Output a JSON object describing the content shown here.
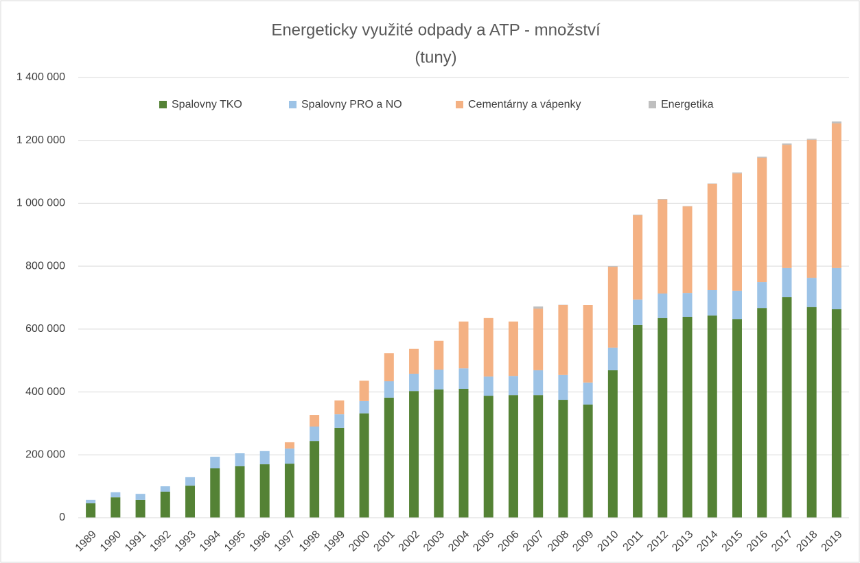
{
  "chart_data": {
    "type": "bar",
    "stacked": true,
    "title": "Energeticky využité odpady a ATP - množství",
    "subtitle": "(tuny)",
    "categories": [
      "1989",
      "1990",
      "1991",
      "1992",
      "1993",
      "1994",
      "1995",
      "1996",
      "1997",
      "1998",
      "1999",
      "2000",
      "2001",
      "2002",
      "2003",
      "2004",
      "2005",
      "2006",
      "2007",
      "2008",
      "2009",
      "2010",
      "2011",
      "2012",
      "2013",
      "2014",
      "2015",
      "2016",
      "2017",
      "2018",
      "2019"
    ],
    "series": [
      {
        "name": "Spalovny TKO",
        "color": "#548235",
        "values": [
          46000,
          65000,
          57000,
          83000,
          102000,
          157000,
          164000,
          170000,
          172000,
          244000,
          286000,
          332000,
          382000,
          403000,
          408000,
          410000,
          388000,
          390000,
          390000,
          375000,
          360000,
          469000,
          613000,
          635000,
          639000,
          643000,
          632000,
          667000,
          702000,
          670000,
          663000
        ]
      },
      {
        "name": "Spalovny PRO a NO",
        "color": "#9dc3e6",
        "values": [
          11000,
          16000,
          19000,
          17000,
          27000,
          37000,
          41000,
          42000,
          48000,
          46000,
          43000,
          39000,
          52000,
          55000,
          63000,
          65000,
          61000,
          61000,
          79000,
          79000,
          70000,
          72000,
          81000,
          78000,
          76000,
          81000,
          90000,
          83000,
          92000,
          93000,
          131000
        ]
      },
      {
        "name": "Cementárny a vápenky",
        "color": "#f4b183",
        "values": [
          0,
          0,
          0,
          0,
          0,
          0,
          0,
          0,
          20000,
          37000,
          44000,
          65000,
          89000,
          79000,
          92000,
          149000,
          186000,
          173000,
          196000,
          222000,
          246000,
          257000,
          268000,
          299000,
          275000,
          338000,
          373000,
          395000,
          392000,
          439000,
          460000
        ]
      },
      {
        "name": "Energetika",
        "color": "#bfbfbf",
        "values": [
          0,
          0,
          0,
          0,
          0,
          0,
          0,
          0,
          0,
          0,
          0,
          0,
          0,
          0,
          0,
          0,
          0,
          0,
          7000,
          1000,
          0,
          2000,
          2000,
          2000,
          1000,
          1000,
          3000,
          3000,
          4000,
          3000,
          6000
        ]
      }
    ],
    "ylim": [
      0,
      1400000
    ],
    "yticks": [
      0,
      {
        "value": 200000,
        "label": "200 000"
      },
      {
        "value": 400000,
        "label": "400 000"
      },
      {
        "value": 600000,
        "label": "600 000"
      },
      {
        "value": 800000,
        "label": "800 000"
      },
      {
        "value": 1000000,
        "label": "1 000 000"
      },
      {
        "value": 1200000,
        "label": "1 200 000"
      },
      {
        "value": 1400000,
        "label": "1 400 000"
      }
    ],
    "grid": true,
    "legend": "top"
  }
}
